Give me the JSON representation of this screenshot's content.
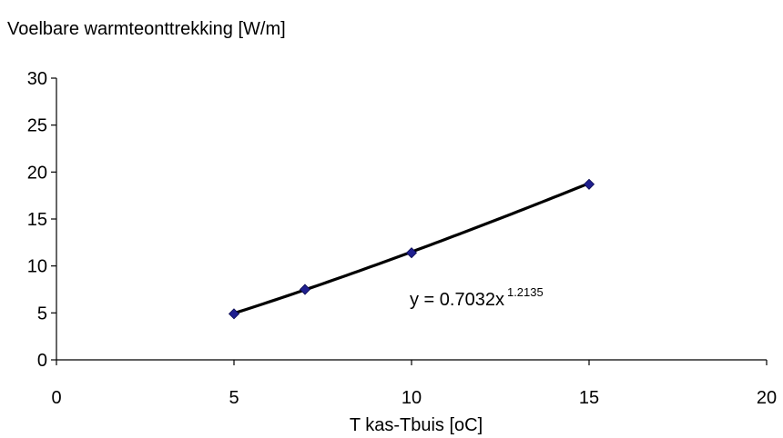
{
  "chart_data": {
    "type": "scatter",
    "title": "",
    "ylabel": "Voelbare warmteonttrekking [W/m]",
    "xlabel": "T kas-Tbuis [oC]",
    "xlim": [
      0,
      20
    ],
    "ylim": [
      0,
      30
    ],
    "xticks": [
      0,
      5,
      10,
      15,
      20
    ],
    "yticks": [
      0,
      5,
      10,
      15,
      20,
      25,
      30
    ],
    "grid": false,
    "legend": "none",
    "series": [
      {
        "x": [
          5,
          7,
          10,
          15
        ],
        "y": [
          4.9,
          7.5,
          11.4,
          18.7
        ],
        "marker": "diamond",
        "color": "#1f1f8f"
      }
    ],
    "trendline": {
      "type": "power",
      "a": 0.7032,
      "b": 1.2135,
      "x_from": 5,
      "x_to": 15,
      "color": "#000000",
      "equation": {
        "prefix": "y = 0.7032x",
        "exponent": "1.2135"
      }
    }
  }
}
